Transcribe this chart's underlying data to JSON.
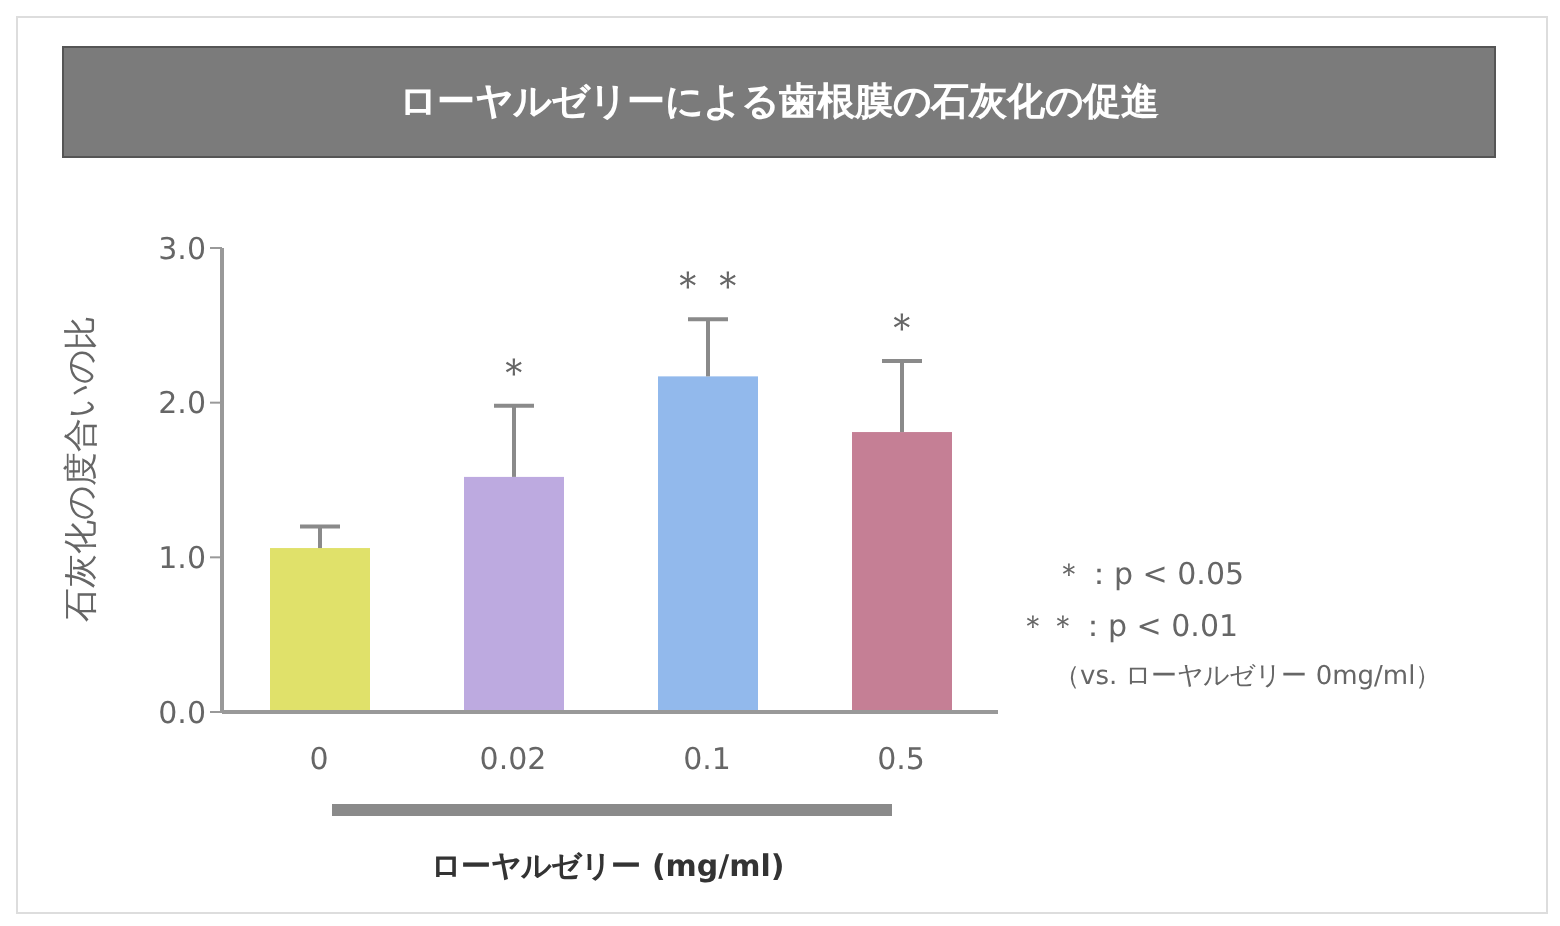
{
  "chart_data": {
    "type": "bar",
    "title": "ローヤルゼリーによる歯根膜の石灰化の促進",
    "xlabel": "ローヤルゼリー (mg/ml)",
    "ylabel": "石灰化の度合いの比",
    "categories": [
      "0",
      "0.02",
      "0.1",
      "0.5"
    ],
    "values": [
      1.06,
      1.52,
      2.17,
      1.81
    ],
    "colors": [
      "#e0e16a",
      "#bdaae0",
      "#92b9ec",
      "#c57f95"
    ],
    "errors": [
      [
        1.06,
        1.2
      ],
      [
        1.52,
        1.98
      ],
      [
        2.17,
        2.54
      ],
      [
        1.81,
        2.27
      ]
    ],
    "ylim": [
      0,
      3
    ],
    "yticks": [
      {
        "value": 0,
        "label": "0.0"
      },
      {
        "value": 1,
        "label": "1.0"
      },
      {
        "value": 2,
        "label": "2.0"
      },
      {
        "value": 3,
        "label": "3.0"
      }
    ],
    "grid": false,
    "legend": false,
    "annotations": [
      {
        "text": "＊",
        "x": "0.02",
        "y": 1.98
      },
      {
        "text": "＊＊",
        "x": "0.1",
        "y": 2.54
      },
      {
        "text": "＊",
        "x": "0.5",
        "y": 2.27
      },
      "＊：p < 0.05",
      "＊＊：p < 0.01",
      "（vs. ローヤルゼリー 0mg/ml）"
    ]
  }
}
